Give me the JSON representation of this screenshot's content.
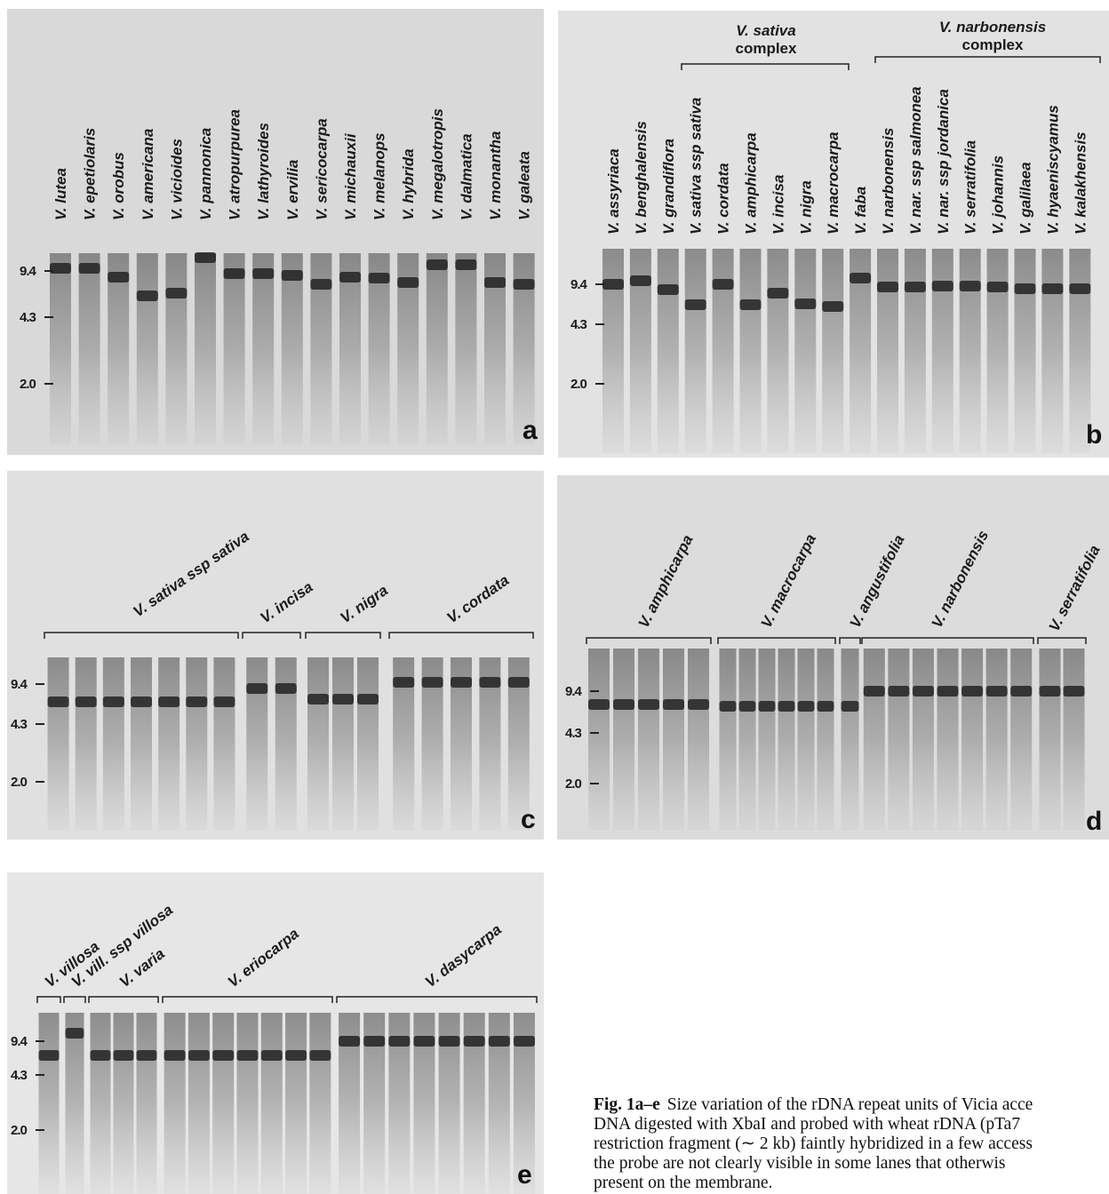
{
  "panels": [
    {
      "letter": "a",
      "markers": [
        "9.4",
        "4.3",
        "2.0"
      ],
      "lanes": [
        "V. lutea",
        "V. epetiolaris",
        "V. orobus",
        "V. americana",
        "V. vicioides",
        "V. pannonica",
        "V. atropurpurea",
        "V. lathyroides",
        "V. ervilia",
        "V. sericocarpa",
        "V. michauxii",
        "V. melanops",
        "V. hybrida",
        "V. megalotropis",
        "V. dalmatica",
        "V. monantha",
        "V. galeata"
      ]
    },
    {
      "letter": "b",
      "markers": [
        "9.4",
        "4.3",
        "2.0"
      ],
      "groups": [
        {
          "label": [
            "V. sativa",
            "complex"
          ]
        },
        {
          "label": [
            "V. narbonensis",
            "complex"
          ]
        }
      ],
      "lanes": [
        "V. assyriaca",
        "V. benghalensis",
        "V. grandiflora",
        "V. sativa  ssp sativa",
        "V. cordata",
        "V. amphicarpa",
        "V. incisa",
        "V. nigra",
        "V. macrocarpa",
        "V. faba",
        "V. narbonensis",
        "V. nar. ssp salmonea",
        "V. nar. ssp jordanica",
        "V. serratifolia",
        "V. johannis",
        "V. galilaea",
        "V. hyaeniscyamus",
        "V. kalakhensis"
      ]
    },
    {
      "letter": "c",
      "markers": [
        "9.4",
        "4.3",
        "2.0"
      ],
      "groups": [
        {
          "label": "V. sativa  ssp sativa"
        },
        {
          "label": "V. incisa"
        },
        {
          "label": "V. nigra"
        },
        {
          "label": "V. cordata"
        }
      ]
    },
    {
      "letter": "d",
      "markers": [
        "9.4",
        "4.3",
        "2.0"
      ],
      "groups": [
        {
          "label": "V. amphicarpa"
        },
        {
          "label": "V. macrocarpa"
        },
        {
          "label": "V. angustifolia"
        },
        {
          "label": "V. narbonensis"
        },
        {
          "label": "V. serratifolia"
        }
      ]
    },
    {
      "letter": "e",
      "markers": [
        "9.4",
        "4.3",
        "2.0"
      ],
      "groups": [
        {
          "label": "V. villosa"
        },
        {
          "label": "V. vill. ssp villosa"
        },
        {
          "label": "V. varia"
        },
        {
          "label": "V. eriocarpa"
        },
        {
          "label": "V. dasycarpa"
        }
      ]
    }
  ],
  "caption": {
    "label": "Fig. 1a–e",
    "lines": [
      "Size variation of the rDNA repeat units of Vicia acce",
      "DNA digested with XbaI and probed with wheat rDNA (pTa7",
      "restriction fragment (∼ 2 kb) faintly hybridized in a few access",
      "the probe are not clearly visible in some lanes that otherwis",
      "present on the membrane."
    ]
  }
}
